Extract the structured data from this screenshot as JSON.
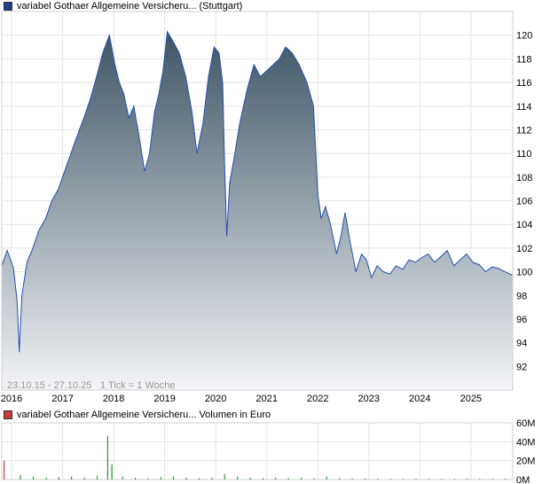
{
  "price_legend": {
    "label": "variabel Gothaer Allgemeine Versicheru... (Stuttgart)",
    "color": "#1f3f8f"
  },
  "volume_legend": {
    "label": "variabel Gothaer Allgemeine Versicheru... Volumen in Euro",
    "color": "#c83a3a"
  },
  "footer": {
    "period": "23.10.15 - 27.10.25",
    "tick_info": "1 Tick = 1 Woche"
  },
  "colors": {
    "line": "#2050b0",
    "area_top": "#3e5565",
    "area_bottom": "#f3f4f7",
    "volume_green": "#2e9a2e",
    "volume_red": "#c83a3a",
    "grid": "#e4e4e4"
  },
  "chart_data": [
    {
      "type": "area",
      "title": "variabel Gothaer Allgemeine Versicheru... (Stuttgart)",
      "x_range": [
        "2015-10-23",
        "2025-10-27"
      ],
      "xticks": [
        "2016",
        "2017",
        "2018",
        "2019",
        "2020",
        "2021",
        "2022",
        "2023",
        "2024",
        "2025"
      ],
      "ylim": [
        90,
        122
      ],
      "yticks": [
        92,
        94,
        96,
        98,
        100,
        102,
        104,
        106,
        108,
        110,
        112,
        114,
        116,
        118,
        120
      ],
      "x": [
        "2015-10-23",
        "2015-12-01",
        "2016-01-15",
        "2016-02-10",
        "2016-02-25",
        "2016-03-15",
        "2016-04-20",
        "2016-06-01",
        "2016-07-15",
        "2016-09-01",
        "2016-10-15",
        "2016-12-01",
        "2017-01-15",
        "2017-03-01",
        "2017-04-15",
        "2017-06-01",
        "2017-07-15",
        "2017-09-01",
        "2017-10-15",
        "2017-12-01",
        "2018-01-10",
        "2018-02-10",
        "2018-03-15",
        "2018-04-20",
        "2018-05-25",
        "2018-07-01",
        "2018-08-10",
        "2018-09-15",
        "2018-10-20",
        "2018-11-20",
        "2018-12-20",
        "2019-01-20",
        "2019-03-01",
        "2019-04-15",
        "2019-06-01",
        "2019-07-15",
        "2019-08-20",
        "2019-10-01",
        "2019-11-10",
        "2019-12-20",
        "2020-01-25",
        "2020-02-20",
        "2020-03-05",
        "2020-03-20",
        "2020-04-10",
        "2020-05-10",
        "2020-06-20",
        "2020-08-15",
        "2020-10-01",
        "2020-11-15",
        "2021-01-01",
        "2021-02-15",
        "2021-04-01",
        "2021-05-15",
        "2021-07-01",
        "2021-08-20",
        "2021-10-15",
        "2021-12-01",
        "2022-01-01",
        "2022-01-25",
        "2022-02-25",
        "2022-04-01",
        "2022-05-15",
        "2022-06-15",
        "2022-07-15",
        "2022-08-20",
        "2022-10-01",
        "2022-11-10",
        "2022-12-15",
        "2023-01-20",
        "2023-03-01",
        "2023-04-15",
        "2023-06-01",
        "2023-07-15",
        "2023-09-01",
        "2023-10-15",
        "2023-12-01",
        "2024-01-15",
        "2024-03-01",
        "2024-04-15",
        "2024-06-01",
        "2024-07-15",
        "2024-09-01",
        "2024-10-15",
        "2024-12-01",
        "2025-01-15",
        "2025-03-01",
        "2025-04-15",
        "2025-06-01",
        "2025-07-15",
        "2025-09-01",
        "2025-10-27"
      ],
      "values": [
        100.5,
        101.8,
        100.3,
        97.5,
        93.2,
        98.0,
        100.8,
        102.0,
        103.5,
        104.5,
        106.0,
        107.0,
        108.5,
        110.0,
        111.5,
        113.0,
        114.5,
        116.5,
        118.5,
        120.0,
        117.5,
        116.0,
        115.0,
        113.0,
        114.0,
        111.5,
        108.5,
        110.0,
        113.5,
        115.0,
        117.0,
        120.3,
        119.5,
        118.5,
        116.5,
        113.5,
        110.0,
        112.5,
        116.5,
        119.0,
        118.5,
        116.0,
        109.0,
        103.0,
        107.5,
        109.5,
        112.5,
        115.5,
        117.5,
        116.5,
        117.0,
        117.5,
        118.0,
        119.0,
        118.5,
        117.5,
        116.0,
        114.0,
        106.5,
        104.5,
        105.5,
        104.0,
        101.5,
        103.0,
        105.0,
        102.5,
        100.0,
        101.5,
        101.0,
        99.5,
        100.5,
        100.0,
        99.8,
        100.5,
        100.2,
        101.0,
        100.8,
        101.2,
        101.5,
        100.8,
        101.3,
        101.8,
        100.5,
        101.0,
        101.5,
        100.8,
        100.6,
        100.0,
        100.4,
        100.3,
        100.0,
        99.7
      ]
    },
    {
      "type": "bar",
      "title": "variabel Gothaer Allgemeine Versicheru... Volumen in Euro",
      "ylabel": "Volumen in Euro",
      "ylim": [
        0,
        60000000
      ],
      "yticks": [
        "0M",
        "20M",
        "40M",
        "60M"
      ],
      "x": [
        "2015-11-05",
        "2016-03-01",
        "2016-06-01",
        "2016-09-01",
        "2016-12-01",
        "2017-03-01",
        "2017-06-01",
        "2017-09-01",
        "2017-11-15",
        "2017-12-15",
        "2018-03-01",
        "2018-06-01",
        "2018-09-01",
        "2018-12-01",
        "2019-03-01",
        "2019-06-01",
        "2019-09-01",
        "2019-12-01",
        "2020-03-01",
        "2020-06-01",
        "2020-09-01",
        "2020-12-01",
        "2021-03-01",
        "2021-06-01",
        "2021-09-01",
        "2021-12-01",
        "2022-03-01",
        "2022-06-01",
        "2022-09-01",
        "2022-12-01",
        "2023-03-01",
        "2023-06-01",
        "2023-09-01",
        "2023-12-01",
        "2024-03-01",
        "2024-06-01",
        "2024-09-01",
        "2024-12-01",
        "2025-03-01",
        "2025-06-01",
        "2025-09-01"
      ],
      "values": [
        20000000,
        5000000,
        3000000,
        2000000,
        2500000,
        3000000,
        2000000,
        4000000,
        46000000,
        16000000,
        3000000,
        2000000,
        1500000,
        2500000,
        3000000,
        2000000,
        1500000,
        2000000,
        6000000,
        3000000,
        2000000,
        1500000,
        2000000,
        1500000,
        2000000,
        1500000,
        3000000,
        1500000,
        1000000,
        1000000,
        1000000,
        800000,
        800000,
        800000,
        800000,
        800000,
        800000,
        800000,
        800000,
        800000,
        800000
      ]
    }
  ]
}
